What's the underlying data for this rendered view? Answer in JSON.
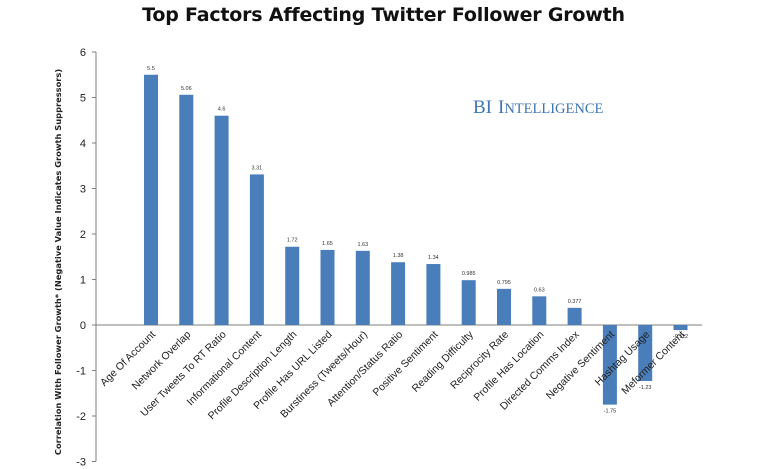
{
  "chart_data": {
    "type": "bar",
    "title": "Top Factors Affecting Twitter Follower Growth",
    "ylabel": "Correlation With Follower Growth* (Negative Value Indicates Growth Suppressors)",
    "xlabel": "",
    "ylim": [
      -3,
      6
    ],
    "yticks": [
      "-3",
      "-2",
      "-1",
      "0",
      "1",
      "2",
      "3",
      "4",
      "5",
      "6"
    ],
    "grid": false,
    "bar_color": "#4a7ebb",
    "categories": [
      "Age Of Account",
      "Network Overlap",
      "User Tweets To RT Ratio",
      "Informational Content",
      "Profile Description Length",
      "Profile Has URL Listed",
      "Burstiness (Tweets/Hour)",
      "Attention/Status Ratio",
      "Positive Sentiment",
      "Reading Difficulty",
      "Reciprocity Rate",
      "Profile Has Location",
      "Directed Comms Index",
      "Negative Sentiment",
      "Hashtag Usage",
      "Meformer Content"
    ],
    "values": [
      5.5,
      5.06,
      4.6,
      3.31,
      1.72,
      1.65,
      1.63,
      1.38,
      1.34,
      0.985,
      0.795,
      0.63,
      0.377,
      -1.75,
      -1.23,
      -0.112
    ],
    "data_labels": [
      "5.5",
      "5.06",
      "4.6",
      "3.31",
      "1.72",
      "1.65",
      "1.63",
      "1.38",
      "1.34",
      "0.985",
      "0.795",
      "0.63",
      "0.377",
      "-1.75",
      "-1.23",
      "-0.112"
    ]
  },
  "watermark": {
    "lead": "BI",
    "rest": "Intelligence",
    "color": "#3e76b4"
  }
}
